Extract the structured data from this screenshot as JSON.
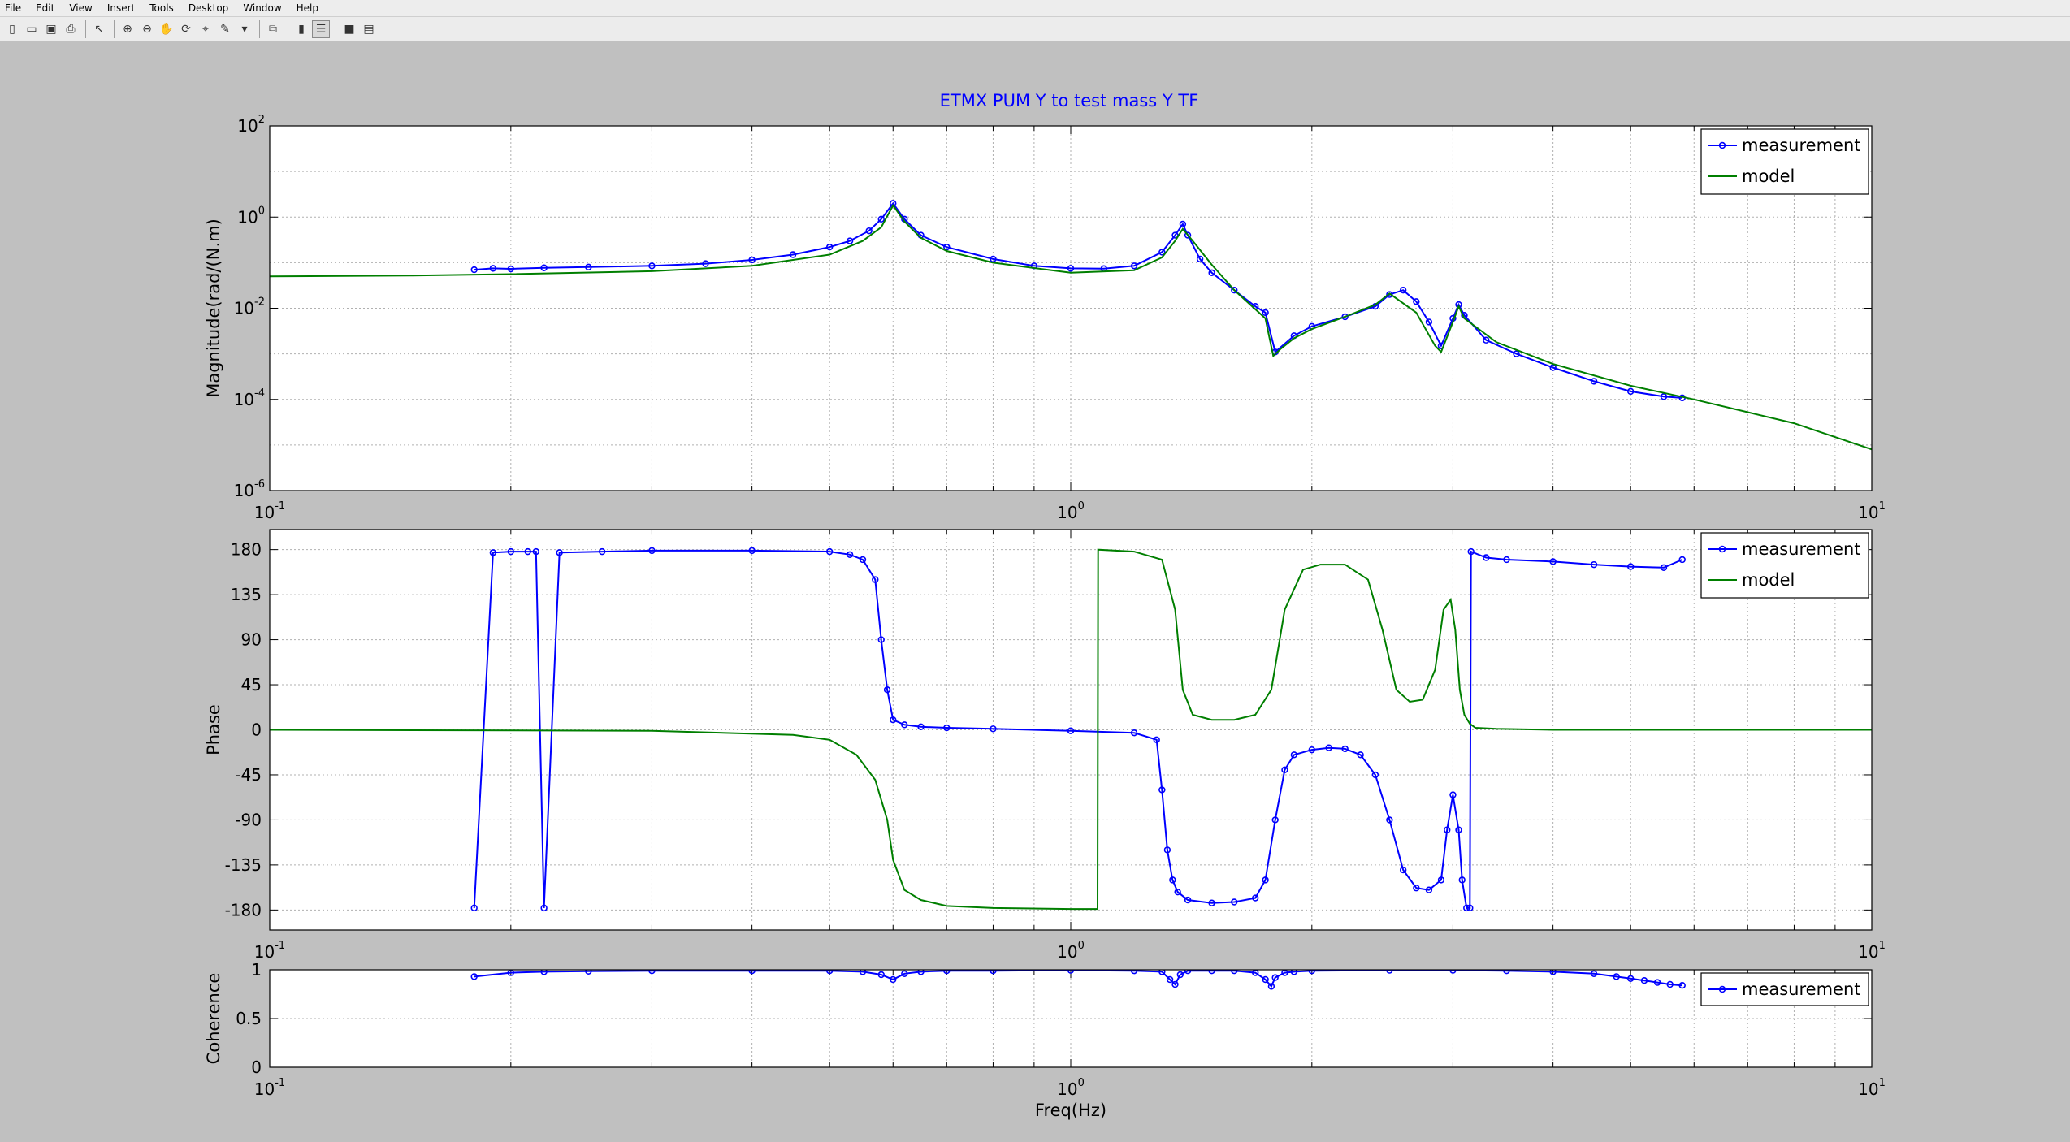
{
  "menu": [
    "File",
    "Edit",
    "View",
    "Insert",
    "Tools",
    "Desktop",
    "Window",
    "Help"
  ],
  "toolbar": {
    "buttons": [
      {
        "name": "new-figure-icon",
        "glyph": "▯"
      },
      {
        "name": "open-file-icon",
        "glyph": "▭"
      },
      {
        "name": "save-icon",
        "glyph": "▣"
      },
      {
        "name": "print-icon",
        "glyph": "⎙"
      },
      {
        "sep": true
      },
      {
        "name": "edit-plot-icon",
        "glyph": "↖"
      },
      {
        "sep": true
      },
      {
        "name": "zoom-in-icon",
        "glyph": "⊕"
      },
      {
        "name": "zoom-out-icon",
        "glyph": "⊖"
      },
      {
        "name": "pan-icon",
        "glyph": "✋"
      },
      {
        "name": "rotate-3d-icon",
        "glyph": "⟳"
      },
      {
        "name": "data-cursor-icon",
        "glyph": "⌖"
      },
      {
        "name": "brush-icon",
        "glyph": "✎"
      },
      {
        "name": "dropdown-arrow-icon",
        "glyph": "▾"
      },
      {
        "sep": true
      },
      {
        "name": "link-plot-icon",
        "glyph": "⧉"
      },
      {
        "sep": true
      },
      {
        "name": "insert-colorbar-icon",
        "glyph": "▮"
      },
      {
        "name": "insert-legend-icon",
        "glyph": "☰",
        "active": true
      },
      {
        "sep": true
      },
      {
        "name": "hide-plot-tools-icon",
        "glyph": "■"
      },
      {
        "name": "show-plot-tools-icon",
        "glyph": "▤"
      }
    ]
  },
  "colors": {
    "measurement": "#0000ff",
    "model": "#007f00",
    "title": "#0000ff",
    "figure_bg": "#c0c0c0",
    "axes_bg": "#ffffff"
  },
  "chart_data": [
    {
      "id": "magnitude",
      "type": "line",
      "title": "ETMX PUM Y to test mass Y TF",
      "xlabel": "",
      "ylabel": "Magnitude(rad/(N.m)",
      "xscale": "log",
      "yscale": "log",
      "xlim": [
        0.1,
        10
      ],
      "ylim": [
        1e-06,
        100
      ],
      "xticks": [
        0.1,
        1,
        10
      ],
      "xtick_labels": [
        [
          "10",
          "-1"
        ],
        [
          "10",
          "0"
        ],
        [
          "10",
          "1"
        ]
      ],
      "yticks": [
        1e-06,
        0.0001,
        0.01,
        1,
        100
      ],
      "ytick_labels": [
        [
          "10",
          "-6"
        ],
        [
          "10",
          "-4"
        ],
        [
          "10",
          "-2"
        ],
        [
          "10",
          "0"
        ],
        [
          "10",
          "2"
        ]
      ],
      "grid": true,
      "legend": "top-right",
      "series": [
        {
          "name": "measurement",
          "markers": true,
          "x": [
            0.18,
            0.19,
            0.2,
            0.22,
            0.25,
            0.3,
            0.35,
            0.4,
            0.45,
            0.5,
            0.53,
            0.56,
            0.58,
            0.6,
            0.62,
            0.65,
            0.7,
            0.8,
            0.9,
            1.0,
            1.1,
            1.2,
            1.3,
            1.35,
            1.38,
            1.4,
            1.45,
            1.5,
            1.6,
            1.7,
            1.75,
            1.8,
            1.9,
            2.0,
            2.2,
            2.4,
            2.5,
            2.6,
            2.7,
            2.8,
            2.9,
            3.0,
            3.05,
            3.1,
            3.3,
            3.6,
            4.0,
            4.5,
            5.0,
            5.5,
            5.8
          ],
          "y": [
            0.07,
            0.075,
            0.073,
            0.077,
            0.08,
            0.085,
            0.095,
            0.115,
            0.15,
            0.22,
            0.3,
            0.5,
            0.9,
            2.0,
            0.9,
            0.4,
            0.22,
            0.12,
            0.085,
            0.075,
            0.074,
            0.085,
            0.17,
            0.4,
            0.7,
            0.4,
            0.12,
            0.06,
            0.025,
            0.011,
            0.008,
            0.0011,
            0.0025,
            0.004,
            0.0065,
            0.011,
            0.02,
            0.025,
            0.014,
            0.005,
            0.0015,
            0.006,
            0.012,
            0.007,
            0.002,
            0.001,
            0.0005,
            0.00025,
            0.00015,
            0.000115,
            0.000108
          ]
        },
        {
          "name": "model",
          "markers": false,
          "x": [
            0.1,
            0.15,
            0.2,
            0.3,
            0.4,
            0.5,
            0.55,
            0.58,
            0.6,
            0.62,
            0.65,
            0.7,
            0.8,
            1.0,
            1.2,
            1.3,
            1.35,
            1.38,
            1.42,
            1.5,
            1.6,
            1.75,
            1.79,
            1.83,
            1.9,
            2.0,
            2.2,
            2.4,
            2.5,
            2.7,
            2.85,
            2.9,
            3.0,
            3.05,
            3.1,
            3.4,
            4.0,
            5.0,
            6.0,
            8.0,
            10.0
          ],
          "y": [
            0.05,
            0.052,
            0.056,
            0.065,
            0.085,
            0.15,
            0.3,
            0.6,
            1.8,
            0.8,
            0.35,
            0.18,
            0.1,
            0.06,
            0.068,
            0.13,
            0.3,
            0.55,
            0.3,
            0.09,
            0.025,
            0.006,
            0.0009,
            0.0013,
            0.0022,
            0.0035,
            0.0065,
            0.012,
            0.021,
            0.008,
            0.0015,
            0.0011,
            0.005,
            0.011,
            0.006,
            0.0018,
            0.0006,
            0.0002,
            0.0001,
            3e-05,
            8e-06
          ]
        }
      ]
    },
    {
      "id": "phase",
      "type": "line",
      "title": "",
      "xlabel": "",
      "ylabel": "Phase",
      "xscale": "log",
      "yscale": "linear",
      "xlim": [
        0.1,
        10
      ],
      "ylim": [
        -200,
        200
      ],
      "xticks": [
        0.1,
        1,
        10
      ],
      "xtick_labels": [
        [
          "10",
          "-1"
        ],
        [
          "10",
          "0"
        ],
        [
          "10",
          "1"
        ]
      ],
      "yticks": [
        -180,
        -135,
        -90,
        -45,
        0,
        45,
        90,
        135,
        180
      ],
      "ytick_labels": [
        "-180",
        "-135",
        "-90",
        "-45",
        "0",
        "45",
        "90",
        "135",
        "180"
      ],
      "grid": true,
      "legend": "top-right",
      "series": [
        {
          "name": "measurement",
          "markers": true,
          "x": [
            0.18,
            0.19,
            0.2,
            0.21,
            0.215,
            0.22,
            0.23,
            0.26,
            0.3,
            0.4,
            0.5,
            0.53,
            0.55,
            0.57,
            0.58,
            0.59,
            0.6,
            0.62,
            0.65,
            0.7,
            0.8,
            1.0,
            1.2,
            1.28,
            1.3,
            1.32,
            1.34,
            1.36,
            1.4,
            1.5,
            1.6,
            1.7,
            1.75,
            1.8,
            1.85,
            1.9,
            2.0,
            2.1,
            2.2,
            2.3,
            2.4,
            2.5,
            2.6,
            2.7,
            2.8,
            2.9,
            2.95,
            3.0,
            3.05,
            3.08,
            3.12,
            3.15,
            3.16,
            3.3,
            3.5,
            4.0,
            4.5,
            5.0,
            5.5,
            5.8
          ],
          "y": [
            -178,
            177,
            178,
            178,
            178,
            -178,
            177,
            178,
            179,
            179,
            178,
            175,
            170,
            150,
            90,
            40,
            10,
            5,
            3,
            2,
            1,
            -1,
            -3,
            -10,
            -60,
            -120,
            -150,
            -162,
            -170,
            -173,
            -172,
            -168,
            -150,
            -90,
            -40,
            -25,
            -20,
            -18,
            -19,
            -25,
            -45,
            -90,
            -140,
            -158,
            -160,
            -150,
            -100,
            -65,
            -100,
            -150,
            -178,
            -178,
            178,
            172,
            170,
            168,
            165,
            163,
            162,
            170
          ]
        },
        {
          "name": "model",
          "markers": false,
          "x": [
            0.1,
            0.3,
            0.45,
            0.5,
            0.54,
            0.57,
            0.59,
            0.6,
            0.62,
            0.65,
            0.7,
            0.8,
            1.0,
            1.08,
            1.082,
            1.2,
            1.3,
            1.35,
            1.38,
            1.42,
            1.5,
            1.6,
            1.7,
            1.78,
            1.85,
            1.95,
            2.05,
            2.2,
            2.35,
            2.45,
            2.55,
            2.65,
            2.75,
            2.85,
            2.92,
            2.98,
            3.02,
            3.06,
            3.1,
            3.15,
            3.2,
            3.4,
            4.0,
            6.0,
            10.0
          ],
          "y": [
            0,
            -1,
            -5,
            -10,
            -25,
            -50,
            -90,
            -130,
            -160,
            -170,
            -176,
            -178,
            -179,
            -179,
            180,
            178,
            170,
            120,
            40,
            15,
            10,
            10,
            15,
            40,
            120,
            160,
            165,
            165,
            150,
            100,
            40,
            28,
            30,
            60,
            120,
            130,
            100,
            40,
            15,
            6,
            2,
            1,
            0,
            0,
            0
          ]
        }
      ]
    },
    {
      "id": "coherence",
      "type": "line",
      "title": "",
      "xlabel": "Freq(Hz)",
      "ylabel": "Coherence",
      "xscale": "log",
      "yscale": "linear",
      "xlim": [
        0.1,
        10
      ],
      "ylim": [
        0,
        1
      ],
      "xticks": [
        0.1,
        1,
        10
      ],
      "xtick_labels": [
        [
          "10",
          "-1"
        ],
        [
          "10",
          "0"
        ],
        [
          "10",
          "1"
        ]
      ],
      "yticks": [
        0,
        0.5,
        1
      ],
      "ytick_labels": [
        "0",
        "0.5",
        "1"
      ],
      "grid": true,
      "legend": "top-right",
      "series": [
        {
          "name": "measurement",
          "markers": true,
          "x": [
            0.18,
            0.2,
            0.22,
            0.25,
            0.3,
            0.4,
            0.5,
            0.55,
            0.58,
            0.6,
            0.62,
            0.65,
            0.7,
            0.8,
            1.0,
            1.2,
            1.3,
            1.33,
            1.35,
            1.37,
            1.4,
            1.5,
            1.6,
            1.7,
            1.75,
            1.78,
            1.8,
            1.85,
            1.9,
            2.0,
            2.5,
            3.0,
            3.5,
            4.0,
            4.5,
            4.8,
            5.0,
            5.2,
            5.4,
            5.6,
            5.8
          ],
          "y": [
            0.93,
            0.97,
            0.98,
            0.985,
            0.99,
            0.99,
            0.99,
            0.98,
            0.95,
            0.9,
            0.96,
            0.98,
            0.99,
            0.99,
            0.995,
            0.99,
            0.98,
            0.9,
            0.85,
            0.95,
            0.99,
            0.99,
            0.99,
            0.97,
            0.9,
            0.83,
            0.92,
            0.97,
            0.98,
            0.99,
            0.995,
            0.995,
            0.99,
            0.98,
            0.96,
            0.93,
            0.91,
            0.89,
            0.87,
            0.85,
            0.84
          ]
        }
      ]
    }
  ]
}
